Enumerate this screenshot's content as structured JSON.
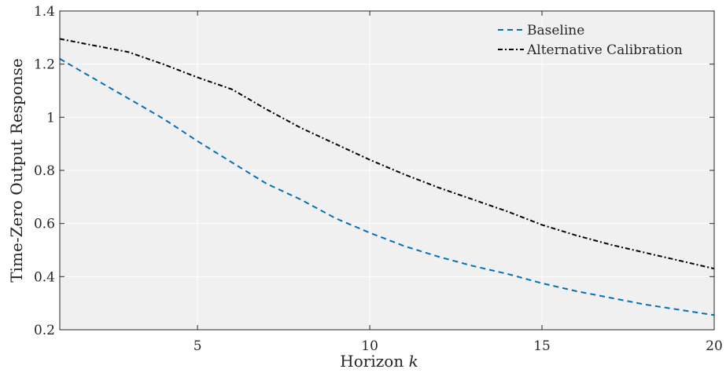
{
  "chart_data": {
    "type": "line",
    "title": "",
    "xlabel": "Horizon",
    "xlabel_var": "k",
    "ylabel": "Time-Zero Output Response",
    "xlim": [
      1,
      20
    ],
    "ylim": [
      0.2,
      1.4
    ],
    "xticks": [
      5,
      10,
      15,
      20
    ],
    "xtick_labels": [
      "5",
      "10",
      "15",
      "20"
    ],
    "yticks": [
      0.2,
      0.4,
      0.6,
      0.8,
      1.0,
      1.2,
      1.4
    ],
    "ytick_labels": [
      "0.2",
      "0.4",
      "0.6",
      "0.8",
      "1",
      "1.2",
      "1.4"
    ],
    "grid": true,
    "legend_position": "top-right",
    "background_color": "#f0f0f0",
    "grid_color": "#ffffff",
    "x": [
      1,
      2,
      3,
      4,
      5,
      6,
      7,
      8,
      9,
      10,
      11,
      12,
      13,
      14,
      15,
      16,
      17,
      18,
      19,
      20
    ],
    "series": [
      {
        "name": "Baseline",
        "style": "dashed",
        "color": "#0072bd",
        "values": [
          1.22,
          1.145,
          1.07,
          0.995,
          0.91,
          0.83,
          0.75,
          0.69,
          0.62,
          0.565,
          0.515,
          0.475,
          0.44,
          0.41,
          0.375,
          0.345,
          0.32,
          0.295,
          0.275,
          0.255
        ]
      },
      {
        "name": "Alternative Calibration",
        "style": "dashdot",
        "color": "#000000",
        "values": [
          1.295,
          1.27,
          1.245,
          1.2,
          1.15,
          1.105,
          1.03,
          0.96,
          0.9,
          0.84,
          0.785,
          0.735,
          0.69,
          0.645,
          0.595,
          0.555,
          0.52,
          0.49,
          0.46,
          0.43
        ]
      }
    ]
  }
}
